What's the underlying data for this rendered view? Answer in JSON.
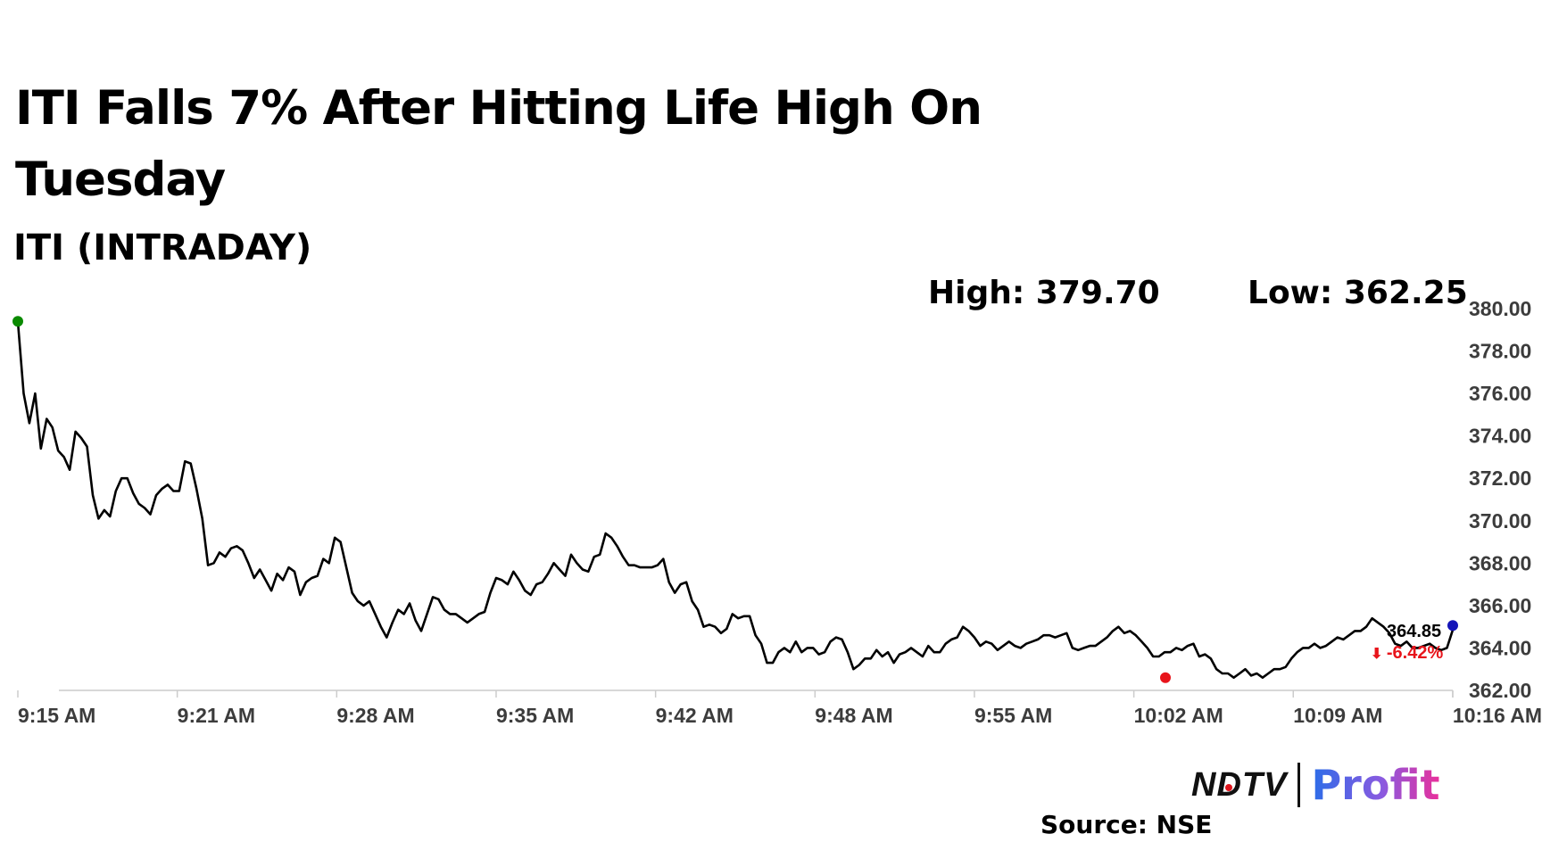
{
  "title": "ITI Falls 7% After Hitting Life High On Tuesday",
  "subtitle": "ITI (INTRADAY)",
  "stats": {
    "high": "High: 379.70",
    "low": "Low: 362.25"
  },
  "logo": {
    "ndtv": "NDTV",
    "profit": "Profit"
  },
  "source": "Source: NSE",
  "chart_data": {
    "type": "line",
    "title": "ITI (INTRADAY)",
    "xlabel": "",
    "ylabel": "",
    "x_ticks": [
      "9:15 AM",
      "9:21 AM",
      "9:28 AM",
      "9:35 AM",
      "9:42 AM",
      "9:48 AM",
      "9:55 AM",
      "10:02 AM",
      "10:09 AM",
      "10:16 AM"
    ],
    "y_ticks": [
      "380.00",
      "378.00",
      "376.00",
      "374.00",
      "372.00",
      "370.00",
      "368.00",
      "366.00",
      "364.00",
      "362.00"
    ],
    "ylim": [
      362,
      380
    ],
    "x_range_minutes_after_915": [
      0,
      70
    ],
    "grid": false,
    "series": [
      {
        "values": [
          379.4,
          376.0,
          374.6,
          376.0,
          373.4,
          374.8,
          374.4,
          373.3,
          373.0,
          372.4,
          374.2,
          373.9,
          373.5,
          371.2,
          370.1,
          370.5,
          370.2,
          371.4,
          372.0,
          372.0,
          371.3,
          370.8,
          370.6,
          370.3,
          371.2,
          371.5,
          371.7,
          371.4,
          371.4,
          372.8,
          372.7,
          371.5,
          370.1,
          367.9,
          368.0,
          368.5,
          368.3,
          368.7,
          368.8,
          368.6,
          368.0,
          367.3,
          367.7,
          367.2,
          366.7,
          367.5,
          367.2,
          367.8,
          367.6,
          366.5,
          367.1,
          367.3,
          367.4,
          368.2,
          368.0,
          369.2,
          369.0,
          367.8,
          366.6,
          366.2,
          366.0,
          366.2,
          365.6,
          365.0,
          364.5,
          365.2,
          365.8,
          365.6,
          366.1,
          365.3,
          364.8,
          365.6,
          366.4,
          366.3,
          365.8,
          365.6,
          365.6,
          365.4,
          365.2,
          365.4,
          365.6,
          365.7,
          366.6,
          367.3,
          367.2,
          367.0,
          367.6,
          367.2,
          366.7,
          366.5,
          367.0,
          367.1,
          367.5,
          368.0,
          367.7,
          367.4,
          368.4,
          368.0,
          367.7,
          367.6,
          368.3,
          368.4,
          369.4,
          369.2,
          368.8,
          368.3,
          367.9,
          367.9,
          367.8,
          367.8,
          367.8,
          367.9,
          368.2,
          367.1,
          366.6,
          367.0,
          367.1,
          366.2,
          365.8,
          365.0,
          365.1,
          365.0,
          364.7,
          364.9,
          365.6,
          365.4,
          365.5,
          365.5,
          364.6,
          364.2,
          363.3,
          363.3,
          363.8,
          364.0,
          363.8,
          364.3,
          363.8,
          364.0,
          364.0,
          363.7,
          363.8,
          364.3,
          364.5,
          364.4,
          363.8,
          363.0,
          363.2,
          363.5,
          363.5,
          363.9,
          363.6,
          363.8,
          363.3,
          363.7,
          363.8,
          364.0,
          363.8,
          363.6,
          364.1,
          363.8,
          363.8,
          364.2,
          364.4,
          364.5,
          365.0,
          364.8,
          364.5,
          364.1,
          364.3,
          364.2,
          363.9,
          364.1,
          364.3,
          364.1,
          364.0,
          364.2,
          364.3,
          364.4,
          364.6,
          364.6,
          364.5,
          364.6,
          364.7,
          364.0,
          363.9,
          364.0,
          364.1,
          364.1,
          364.3,
          364.5,
          364.8,
          365.0,
          364.7,
          364.8,
          364.6,
          364.3,
          364.0,
          363.6,
          363.6,
          363.8,
          363.8,
          364.0,
          363.9,
          364.1,
          364.2,
          363.6,
          363.7,
          363.5,
          363.0,
          362.8,
          362.8,
          362.6,
          362.8,
          363.0,
          362.7,
          362.8,
          362.6,
          362.8,
          363.0,
          363.0,
          363.1,
          363.5,
          363.8,
          364.0,
          364.0,
          364.2,
          364.0,
          364.1,
          364.3,
          364.5,
          364.4,
          364.6,
          364.8,
          364.8,
          365.0,
          365.4,
          365.2,
          365.0,
          364.7,
          364.2,
          364.1,
          364.3,
          364.0,
          364.0,
          364.1,
          364.2,
          364.0,
          363.9,
          364.0,
          364.85
        ],
        "color": "#000000"
      }
    ],
    "markers": {
      "open": 379.4,
      "low": 362.6,
      "last": 364.85
    },
    "last_price_label": "364.85",
    "change_label": "-6.42%",
    "change_arrow": "⬇",
    "colors": {
      "line": "#000000",
      "open_marker": "#0a8a00",
      "low_marker": "#e8141b",
      "last_marker": "#1515b8",
      "change": "#e8141b",
      "axis": "#cccccc"
    }
  }
}
